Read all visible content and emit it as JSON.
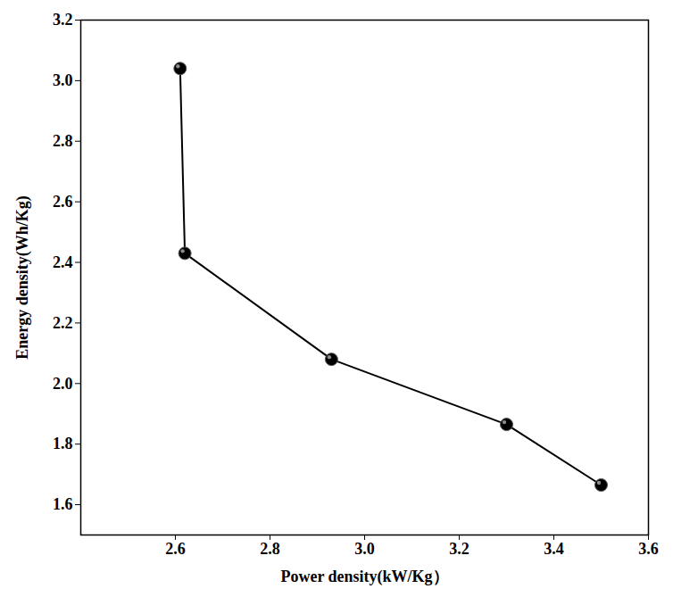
{
  "chart_data": {
    "type": "line",
    "x_label": "Power density(kW/Kg）",
    "y_label": "Energy density(Wh/Kg)",
    "x": [
      2.61,
      2.62,
      2.93,
      3.3,
      3.5
    ],
    "series": [
      {
        "name": "Energy density",
        "color": "#000000",
        "values": [
          3.04,
          2.43,
          2.08,
          1.865,
          1.665
        ],
        "marker": "circle",
        "line_style": "solid"
      }
    ],
    "xlim": [
      2.4,
      3.6
    ],
    "xticks": [
      2.6,
      2.8,
      {
        "value": 3,
        "label": "3.0"
      },
      3.2,
      3.4,
      3.6
    ],
    "ylim": [
      1.5,
      3.2
    ],
    "yticks": [
      1.6,
      1.8,
      {
        "value": 2,
        "label": "2.0"
      },
      2.2,
      2.4,
      2.6,
      2.8,
      {
        "value": 3,
        "label": "3.0"
      },
      3.2
    ],
    "grid": false
  }
}
